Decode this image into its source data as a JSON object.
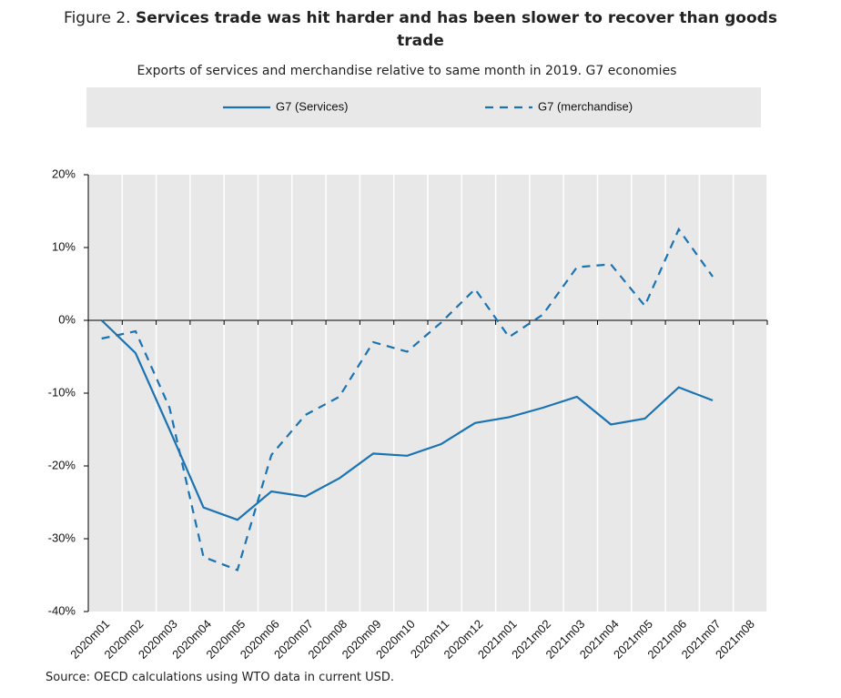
{
  "chart_data": {
    "type": "line",
    "title_label": "Figure 2.",
    "title": "Services trade was hit harder and has been slower to recover than goods trade",
    "subtitle": "Exports of services and merchandise relative to same month in 2019. G7 economies",
    "source": "Source: OECD calculations using WTO data in current USD.",
    "categories": [
      "2020m01",
      "2020m02",
      "2020m03",
      "2020m04",
      "2020m05",
      "2020m06",
      "2020m07",
      "2020m08",
      "2020m09",
      "2020m10",
      "2020m11",
      "2020m12",
      "2021m01",
      "2021m02",
      "2021m03",
      "2021m04",
      "2021m05",
      "2021m06",
      "2021m07",
      "2021m08"
    ],
    "series": [
      {
        "name": "G7 (Services)",
        "color": "#1a73b2",
        "dash": false,
        "values": [
          0,
          -4.5,
          -15,
          -25.7,
          -27.4,
          -23.5,
          -24.2,
          -21.7,
          -18.3,
          -18.6,
          -17,
          -14.1,
          -13.3,
          -12,
          -10.5,
          -14.3,
          -13.5,
          -9.2,
          -11,
          null
        ]
      },
      {
        "name": "G7 (merchandise)",
        "color": "#1a73b2",
        "dash": true,
        "values": [
          -2.5,
          -1.5,
          -12,
          -32.5,
          -34.3,
          -18.5,
          -13,
          -10.5,
          -3,
          -4.3,
          -0.3,
          4.3,
          -2.3,
          0.8,
          7.3,
          7.7,
          2,
          12.5,
          6,
          null
        ]
      }
    ],
    "ylim": [
      -40,
      20
    ],
    "yticks": [
      {
        "value": -40,
        "label": "-40%"
      },
      {
        "value": -30,
        "label": "-30%"
      },
      {
        "value": -20,
        "label": "-20%"
      },
      {
        "value": -10,
        "label": "-10%"
      },
      {
        "value": 0,
        "label": "0%"
      },
      {
        "value": 10,
        "label": "10%"
      },
      {
        "value": 20,
        "label": "20%"
      }
    ],
    "grid": true
  }
}
